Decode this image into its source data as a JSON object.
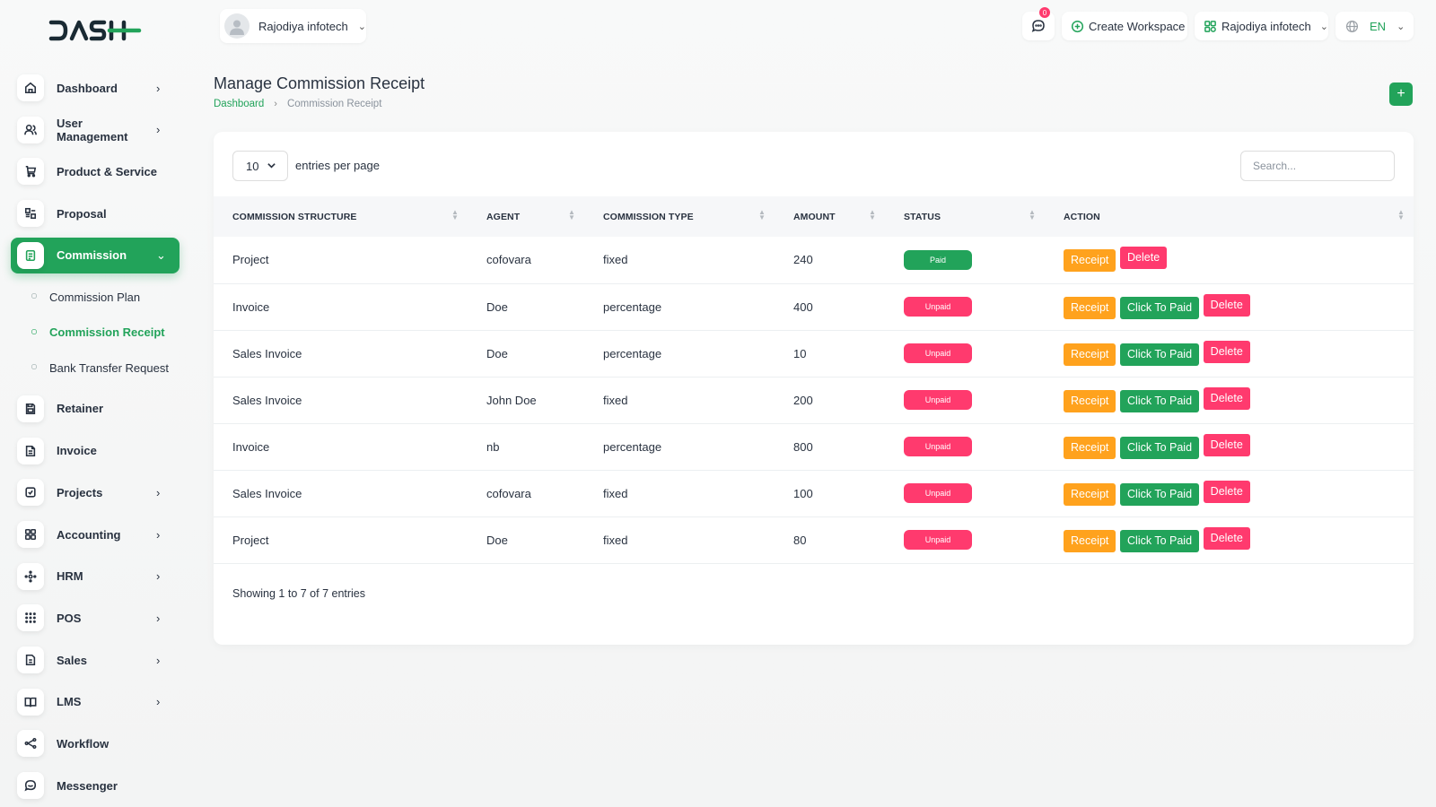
{
  "brand": {
    "logo_text": "DASH"
  },
  "header": {
    "user_name": "Rajodiya infotech",
    "notifications_count": "0",
    "create_workspace": "Create Workspace",
    "workspace_name": "Rajodiya infotech",
    "language": "EN"
  },
  "sidebar": {
    "items": [
      {
        "label": "Dashboard",
        "icon": "home-icon",
        "chevron": true
      },
      {
        "label": "User Management",
        "icon": "users-icon",
        "chevron": true
      },
      {
        "label": "Product & Service",
        "icon": "cart-icon",
        "chevron": false
      },
      {
        "label": "Proposal",
        "icon": "proposal-icon",
        "chevron": false
      },
      {
        "label": "Commission",
        "icon": "commission-icon",
        "chevron": true,
        "active": true
      },
      {
        "label": "Retainer",
        "icon": "retainer-icon",
        "chevron": false
      },
      {
        "label": "Invoice",
        "icon": "invoice-icon",
        "chevron": false
      },
      {
        "label": "Projects",
        "icon": "projects-icon",
        "chevron": true
      },
      {
        "label": "Accounting",
        "icon": "accounting-icon",
        "chevron": true
      },
      {
        "label": "HRM",
        "icon": "hrm-icon",
        "chevron": true
      },
      {
        "label": "POS",
        "icon": "pos-icon",
        "chevron": true
      },
      {
        "label": "Sales",
        "icon": "sales-icon",
        "chevron": true
      },
      {
        "label": "LMS",
        "icon": "lms-icon",
        "chevron": true
      },
      {
        "label": "Workflow",
        "icon": "workflow-icon",
        "chevron": false
      },
      {
        "label": "Messenger",
        "icon": "messenger-icon",
        "chevron": false
      }
    ],
    "commission_sub": [
      "Commission Plan",
      "Commission Receipt",
      "Bank Transfer Request"
    ]
  },
  "page": {
    "title": "Manage Commission Receipt",
    "breadcrumb_home": "Dashboard",
    "breadcrumb_current": "Commission Receipt"
  },
  "table_controls": {
    "per_page": "10",
    "per_page_label": "entries per page",
    "search_placeholder": "Search..."
  },
  "table": {
    "columns": [
      "COMMISSION STRUCTURE",
      "AGENT",
      "COMMISSION TYPE",
      "AMOUNT",
      "STATUS",
      "ACTION"
    ],
    "rows": [
      {
        "structure": "Project",
        "agent": "cofovara",
        "type": "fixed",
        "amount": "240",
        "status": "Paid"
      },
      {
        "structure": "Invoice",
        "agent": "Doe",
        "type": "percentage",
        "amount": "400",
        "status": "Unpaid"
      },
      {
        "structure": "Sales Invoice",
        "agent": "Doe",
        "type": "percentage",
        "amount": "10",
        "status": "Unpaid"
      },
      {
        "structure": "Sales Invoice",
        "agent": "John Doe",
        "type": "fixed",
        "amount": "200",
        "status": "Unpaid"
      },
      {
        "structure": "Invoice",
        "agent": "nb",
        "type": "percentage",
        "amount": "800",
        "status": "Unpaid"
      },
      {
        "structure": "Sales Invoice",
        "agent": "cofovara",
        "type": "fixed",
        "amount": "100",
        "status": "Unpaid"
      },
      {
        "structure": "Project",
        "agent": "Doe",
        "type": "fixed",
        "amount": "80",
        "status": "Unpaid"
      }
    ],
    "actions": {
      "receipt": "Receipt",
      "pay": "Click To Paid",
      "delete": "Delete"
    },
    "footer": "Showing 1 to 7 of 7 entries"
  },
  "colors": {
    "primary": "#22a35a",
    "danger": "#ff3a6e",
    "warning": "#ffa21d"
  }
}
